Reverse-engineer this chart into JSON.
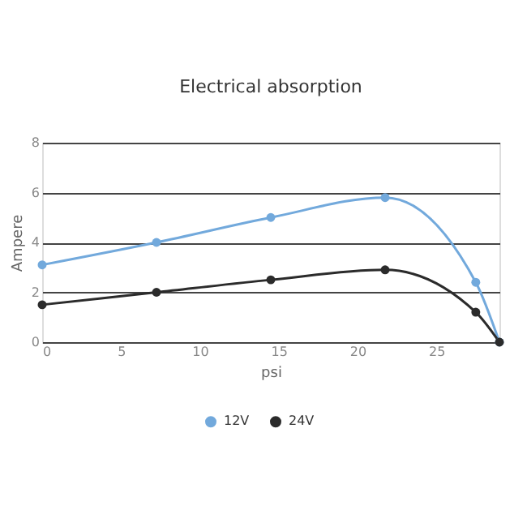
{
  "chart_data": {
    "type": "line",
    "title": "Electrical absorption",
    "xlabel": "psi",
    "ylabel": "Ampere",
    "x": [
      0,
      7.25,
      14.5,
      21.75,
      27.5,
      29
    ],
    "series": [
      {
        "name": "12V",
        "color": "#72a9dc",
        "values": [
          3.1,
          4.0,
          5.0,
          5.8,
          2.4,
          0
        ]
      },
      {
        "name": "24V",
        "color": "#2b2b2b",
        "values": [
          1.5,
          2.0,
          2.5,
          2.9,
          1.2,
          0
        ]
      }
    ],
    "xlim": [
      0,
      29
    ],
    "xticks": [
      0,
      5,
      10,
      15,
      20,
      25
    ],
    "ylim": [
      0,
      8
    ],
    "yticks": [
      0,
      2,
      4,
      6,
      8
    ],
    "grid": "y",
    "legend": "bottom",
    "marker": "circle",
    "line_style": "solid"
  }
}
